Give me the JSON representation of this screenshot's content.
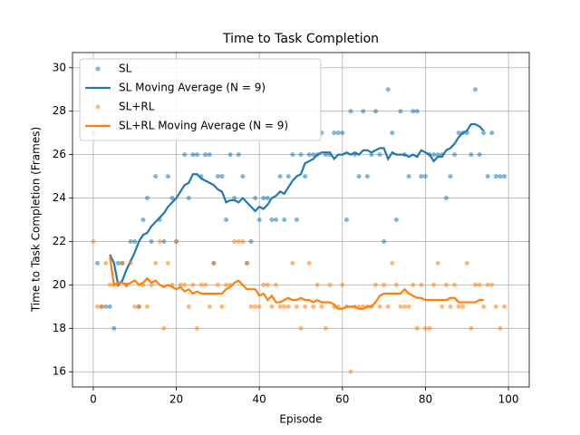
{
  "chart_data": {
    "type": "scatter",
    "title": "Time to Task Completion",
    "x_label": "Episode",
    "y_label": "Time to Task Completion (Frames)",
    "xlim": [
      -5,
      105
    ],
    "ylim": [
      15.3,
      30.7
    ],
    "xticks": [
      0,
      20,
      40,
      60,
      80,
      100
    ],
    "yticks": [
      16,
      18,
      20,
      22,
      24,
      26,
      28,
      30
    ],
    "grid": true,
    "legend": "upper left",
    "series": [
      {
        "name": "SL",
        "type": "scatter",
        "color": "#1f77b4",
        "x": [
          0,
          1,
          2,
          3,
          4,
          5,
          6,
          7,
          8,
          9,
          10,
          11,
          12,
          13,
          14,
          15,
          16,
          17,
          18,
          19,
          20,
          21,
          22,
          23,
          24,
          25,
          26,
          27,
          28,
          29,
          30,
          31,
          32,
          33,
          34,
          35,
          36,
          37,
          38,
          39,
          40,
          41,
          42,
          43,
          44,
          45,
          46,
          47,
          48,
          49,
          50,
          51,
          52,
          53,
          54,
          55,
          56,
          57,
          58,
          59,
          60,
          61,
          62,
          63,
          64,
          65,
          66,
          67,
          68,
          69,
          70,
          71,
          72,
          73,
          74,
          75,
          76,
          77,
          78,
          79,
          80,
          81,
          82,
          83,
          84,
          85,
          86,
          87,
          88,
          89,
          90,
          91,
          92,
          93,
          94,
          95,
          96,
          97,
          98,
          99
        ],
        "values": [
          27,
          21,
          19,
          19,
          19,
          18,
          21,
          21,
          20,
          22,
          22,
          19,
          23,
          24,
          22,
          25,
          23,
          22,
          25,
          24,
          22,
          27,
          26,
          24,
          26,
          26,
          25,
          26,
          26,
          21,
          25,
          25,
          23,
          26,
          24,
          26,
          25,
          21,
          22,
          24,
          23,
          24,
          24,
          23,
          23,
          25,
          23,
          25,
          26,
          23,
          26,
          25,
          26,
          26,
          26,
          27,
          26,
          26,
          27,
          27,
          27,
          23,
          28,
          26,
          25,
          28,
          25,
          26,
          28,
          26,
          22,
          29,
          27,
          23,
          28,
          26,
          25,
          28,
          28,
          25,
          25,
          26,
          26,
          26,
          26,
          24,
          25,
          26,
          27,
          27,
          27,
          26,
          29,
          26,
          27,
          25,
          27,
          25,
          25,
          25
        ]
      },
      {
        "name": "SL Moving Average (N = 9)",
        "type": "line",
        "color": "#1f77b4",
        "x": [
          4,
          5,
          6,
          7,
          8,
          9,
          10,
          11,
          12,
          13,
          14,
          15,
          16,
          17,
          18,
          19,
          20,
          21,
          22,
          23,
          24,
          25,
          26,
          27,
          28,
          29,
          30,
          31,
          32,
          33,
          34,
          35,
          36,
          37,
          38,
          39,
          40,
          41,
          42,
          43,
          44,
          45,
          46,
          47,
          48,
          49,
          50,
          51,
          52,
          53,
          54,
          55,
          56,
          57,
          58,
          59,
          60,
          61,
          62,
          63,
          64,
          65,
          66,
          67,
          68,
          69,
          70,
          71,
          72,
          73,
          74,
          75,
          76,
          77,
          78,
          79,
          80,
          81,
          82,
          83,
          84,
          85,
          86,
          87,
          88,
          89,
          90,
          91,
          92,
          93,
          94
        ],
        "values": [
          21.4,
          21.0,
          20.0,
          20.2,
          20.7,
          21.1,
          21.5,
          22.0,
          22.3,
          22.4,
          22.7,
          22.9,
          23.1,
          23.3,
          23.6,
          23.8,
          24.0,
          24.3,
          24.6,
          24.7,
          25.1,
          25.1,
          24.9,
          24.8,
          24.7,
          24.6,
          24.4,
          24.3,
          23.8,
          23.9,
          23.9,
          23.8,
          24.0,
          23.8,
          23.6,
          23.4,
          23.6,
          23.5,
          23.7,
          24.0,
          24.1,
          24.3,
          24.2,
          24.5,
          24.8,
          25.0,
          25.1,
          25.6,
          25.7,
          25.8,
          26.0,
          26.1,
          26.1,
          26.1,
          25.8,
          26.0,
          26.0,
          26.1,
          26.0,
          26.1,
          26.0,
          26.2,
          26.2,
          26.1,
          26.2,
          26.3,
          26.3,
          25.8,
          26.1,
          26.0,
          26.0,
          26.0,
          25.9,
          26.0,
          25.9,
          26.2,
          26.1,
          26.0,
          25.7,
          25.9,
          25.9,
          26.2,
          26.3,
          26.5,
          26.8,
          27.0,
          27.1,
          27.4,
          27.4,
          27.3,
          27.1
        ]
      },
      {
        "name": "SL+RL",
        "type": "scatter",
        "color": "#ff7f0e",
        "x": [
          0,
          1,
          2,
          3,
          4,
          5,
          6,
          7,
          8,
          9,
          10,
          11,
          12,
          13,
          14,
          15,
          16,
          17,
          18,
          19,
          20,
          21,
          22,
          23,
          24,
          25,
          26,
          27,
          28,
          29,
          30,
          31,
          32,
          33,
          34,
          35,
          36,
          37,
          38,
          39,
          40,
          41,
          42,
          43,
          44,
          45,
          46,
          47,
          48,
          49,
          50,
          51,
          52,
          53,
          54,
          55,
          56,
          57,
          58,
          59,
          60,
          61,
          62,
          63,
          64,
          65,
          66,
          67,
          68,
          69,
          70,
          71,
          72,
          73,
          74,
          75,
          76,
          77,
          78,
          79,
          80,
          81,
          82,
          83,
          84,
          85,
          86,
          87,
          88,
          89,
          90,
          91,
          92,
          93,
          94,
          95,
          96,
          97,
          98,
          99
        ],
        "values": [
          22,
          19,
          19,
          21,
          20,
          20,
          20,
          21,
          20,
          21,
          19,
          19,
          20,
          19,
          20,
          21,
          22,
          18,
          21,
          20,
          22,
          20,
          20,
          19,
          20,
          18,
          20,
          20,
          19,
          21,
          20,
          19,
          20,
          20,
          22,
          22,
          22,
          21,
          19,
          19,
          19,
          20,
          20,
          19,
          20,
          19,
          19,
          19,
          21,
          19,
          18,
          19,
          21,
          19,
          20,
          19,
          18,
          20,
          19,
          19,
          20,
          19,
          16,
          19,
          19,
          19,
          19,
          19,
          20,
          19,
          20,
          19,
          21,
          20,
          19,
          19,
          19,
          20,
          18,
          20,
          18,
          18,
          20,
          21,
          19,
          20,
          19,
          20,
          19,
          19,
          21,
          18,
          20,
          20,
          19,
          20,
          20,
          19,
          18,
          19
        ]
      },
      {
        "name": "SL+RL Moving Average (N = 9)",
        "type": "line",
        "color": "#ff7f0e",
        "x": [
          4,
          5,
          6,
          7,
          8,
          9,
          10,
          11,
          12,
          13,
          14,
          15,
          16,
          17,
          18,
          19,
          20,
          21,
          22,
          23,
          24,
          25,
          26,
          27,
          28,
          29,
          30,
          31,
          32,
          33,
          34,
          35,
          36,
          37,
          38,
          39,
          40,
          41,
          42,
          43,
          44,
          45,
          46,
          47,
          48,
          49,
          50,
          51,
          52,
          53,
          54,
          55,
          56,
          57,
          58,
          59,
          60,
          61,
          62,
          63,
          64,
          65,
          66,
          67,
          68,
          69,
          70,
          71,
          72,
          73,
          74,
          75,
          76,
          77,
          78,
          79,
          80,
          81,
          82,
          83,
          84,
          85,
          86,
          87,
          88,
          89,
          90,
          91,
          92,
          93,
          94
        ],
        "values": [
          21.3,
          20.0,
          20.1,
          20.1,
          20.0,
          20.1,
          20.2,
          20.0,
          20.1,
          20.3,
          20.1,
          20.2,
          20.0,
          19.9,
          20.0,
          19.9,
          19.8,
          19.9,
          19.7,
          19.8,
          19.6,
          19.7,
          19.6,
          19.6,
          19.6,
          19.6,
          19.6,
          19.6,
          19.8,
          19.9,
          20.1,
          20.2,
          20.0,
          19.8,
          19.8,
          19.8,
          19.5,
          19.6,
          19.3,
          19.5,
          19.2,
          19.2,
          19.3,
          19.4,
          19.3,
          19.3,
          19.4,
          19.3,
          19.3,
          19.2,
          19.3,
          19.2,
          19.2,
          19.2,
          19.1,
          18.9,
          18.9,
          19.0,
          19.0,
          19.0,
          18.9,
          18.9,
          19.0,
          19.0,
          19.2,
          19.5,
          19.6,
          19.6,
          19.6,
          19.6,
          19.6,
          19.8,
          19.6,
          19.5,
          19.4,
          19.4,
          19.3,
          19.3,
          19.3,
          19.3,
          19.3,
          19.3,
          19.4,
          19.4,
          19.2,
          19.2,
          19.2,
          19.2,
          19.2,
          19.3,
          19.3
        ]
      }
    ]
  }
}
